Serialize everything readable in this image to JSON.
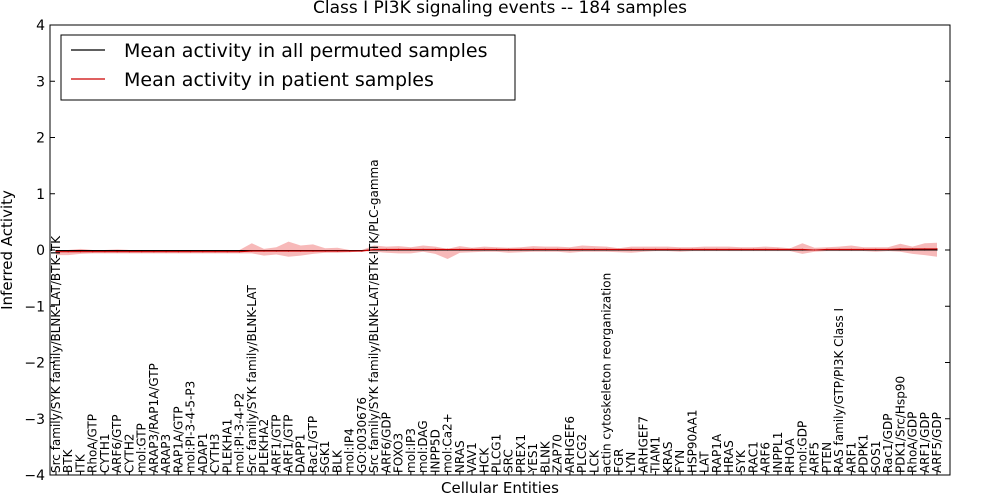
{
  "chart_data": {
    "type": "line",
    "title": "Class I PI3K signaling events -- 184 samples",
    "xlabel": "Cellular Entities",
    "ylabel": "Inferred Activity",
    "ylim": [
      -4,
      4
    ],
    "yticks": [
      "−4",
      "−3",
      "−2",
      "−1",
      "0",
      "1",
      "2",
      "3",
      "4"
    ],
    "legend_position": "upper-left",
    "categories": [
      "Src family/SYK family/BLNK-LAT/BTK-ITK",
      "BTK",
      "ITK",
      "RhoA/GTP",
      "CYTH1",
      "ARF6/GTP",
      "CYTH2",
      "mol:GTP",
      "ARAP3/RAP1A/GTP",
      "ARAP3",
      "RAP1A/GTP",
      "mol:PI-3-4-5-P3",
      "ADAP1",
      "CYTH3",
      "PLEKHA1",
      "mol:PI-3-4-P2",
      "Src family/SYK family/BLNK-LAT",
      "PLEKHA2",
      "ARF1/GTP",
      "ARF1/GTP",
      "DAPP1",
      "Rac1/GTP",
      "SGK1",
      "BLK",
      "mol:IP4",
      "GO:0030676",
      "Src family/SYK family/BLNK-LAT/BTK-ITK/PLC-gamma",
      "ARF6/GDP",
      "FOXO3",
      "mol:IP3",
      "mol:DAG",
      "INPP5D",
      "mol:Ca2+",
      "NRAS",
      "VAV1",
      "HCK",
      "PLCG1",
      "SRC",
      "PREX1",
      "YES1",
      "BLNK",
      "ZAP70",
      "ARHGEF6",
      "PLCG2",
      "LCK",
      "actin cytoskeleton reorganization",
      "FGR",
      "LYN",
      "ARHGEF7",
      "TIAM1",
      "KRAS",
      "FYN",
      "HSP90AA1",
      "LAT",
      "RAP1A",
      "HRAS",
      "SYK",
      "RAC1",
      "ARF6",
      "INPPL1",
      "RHOA",
      "mol:GDP",
      "ARF5",
      "PTEN",
      "RAS family/GTP/PI3K Class I",
      "ARF1",
      "PDPK1",
      "SOS1",
      "Rac1/GDP",
      "PDK1/Src/Hsp90",
      "RhoA/GDP",
      "ARF1/GDP",
      "ARF5/GDP"
    ],
    "series": [
      {
        "name": "Mean activity in all permuted samples",
        "color": "#000000",
        "values": [
          -0.01,
          -0.01,
          -0.01,
          -0.01,
          -0.01,
          -0.01,
          -0.01,
          -0.01,
          -0.01,
          -0.01,
          -0.01,
          -0.01,
          -0.01,
          -0.01,
          -0.01,
          -0.01,
          -0.01,
          -0.01,
          -0.01,
          -0.01,
          -0.01,
          -0.01,
          -0.01,
          -0.01,
          -0.01,
          -0.01,
          0.0,
          0.0,
          0.0,
          0.0,
          0.0,
          0.0,
          0.0,
          0.0,
          0.0,
          0.0,
          0.0,
          0.0,
          0.0,
          0.0,
          0.0,
          0.0,
          0.0,
          0.0,
          0.0,
          0.0,
          0.0,
          0.0,
          0.0,
          0.0,
          0.0,
          0.0,
          0.0,
          0.0,
          0.0,
          0.0,
          0.0,
          0.0,
          0.0,
          0.0,
          0.0,
          0.0,
          0.0,
          0.0,
          0.0,
          0.0,
          0.0,
          0.0,
          0.0,
          0.0,
          0.0,
          0.0,
          0.0
        ]
      },
      {
        "name": "Mean activity in patient samples",
        "color": "#cc0000",
        "values": [
          -0.03,
          -0.03,
          -0.03,
          -0.03,
          -0.03,
          -0.03,
          -0.03,
          -0.03,
          -0.03,
          -0.03,
          -0.03,
          -0.03,
          -0.03,
          -0.03,
          -0.03,
          -0.03,
          -0.02,
          -0.02,
          -0.02,
          -0.02,
          -0.02,
          -0.02,
          -0.02,
          -0.02,
          -0.02,
          -0.02,
          0.01,
          0.01,
          0.01,
          0.01,
          0.01,
          0.01,
          0.01,
          0.01,
          0.01,
          0.01,
          0.01,
          0.01,
          0.01,
          0.01,
          0.01,
          0.01,
          0.01,
          0.01,
          0.01,
          0.01,
          0.01,
          0.01,
          0.01,
          0.01,
          0.01,
          0.01,
          0.01,
          0.01,
          0.01,
          0.01,
          0.01,
          0.01,
          0.01,
          0.01,
          0.01,
          0.01,
          0.0,
          0.01,
          0.01,
          0.01,
          0.01,
          0.01,
          0.01,
          0.02,
          0.02,
          0.02,
          0.02
        ]
      }
    ],
    "band_upper": [
      0.0,
      0.0,
      0.02,
      0.0,
      0.0,
      0.01,
      0.0,
      0.0,
      0.0,
      0.0,
      0.0,
      0.0,
      0.0,
      0.0,
      0.0,
      0.0,
      0.12,
      0.02,
      0.05,
      0.15,
      0.08,
      0.1,
      0.03,
      0.04,
      0.0,
      0.0,
      0.08,
      0.06,
      0.07,
      0.05,
      0.08,
      0.06,
      0.02,
      0.07,
      0.04,
      0.06,
      0.05,
      0.04,
      0.05,
      0.07,
      0.06,
      0.06,
      0.05,
      0.08,
      0.07,
      0.06,
      0.03,
      0.06,
      0.06,
      0.06,
      0.06,
      0.05,
      0.05,
      0.06,
      0.06,
      0.06,
      0.05,
      0.05,
      0.06,
      0.05,
      0.03,
      0.12,
      0.04,
      0.05,
      0.06,
      0.08,
      0.05,
      0.05,
      0.05,
      0.11,
      0.06,
      0.12,
      0.13
    ],
    "band_lower": [
      -0.09,
      -0.09,
      -0.07,
      -0.06,
      -0.06,
      -0.06,
      -0.06,
      -0.06,
      -0.06,
      -0.06,
      -0.06,
      -0.06,
      -0.06,
      -0.06,
      -0.06,
      -0.06,
      -0.06,
      -0.1,
      -0.08,
      -0.12,
      -0.1,
      -0.07,
      -0.05,
      -0.05,
      -0.04,
      -0.02,
      -0.03,
      -0.05,
      -0.06,
      -0.06,
      -0.03,
      -0.07,
      -0.16,
      -0.05,
      -0.04,
      -0.03,
      -0.03,
      -0.05,
      -0.04,
      -0.03,
      -0.03,
      -0.03,
      -0.05,
      -0.03,
      -0.03,
      -0.03,
      -0.04,
      -0.05,
      -0.03,
      -0.02,
      -0.02,
      -0.03,
      -0.02,
      -0.02,
      -0.02,
      -0.02,
      -0.02,
      -0.02,
      -0.02,
      -0.02,
      -0.02,
      -0.07,
      -0.03,
      -0.02,
      -0.02,
      -0.02,
      -0.02,
      -0.03,
      -0.02,
      -0.03,
      -0.07,
      -0.09,
      -0.12
    ]
  }
}
